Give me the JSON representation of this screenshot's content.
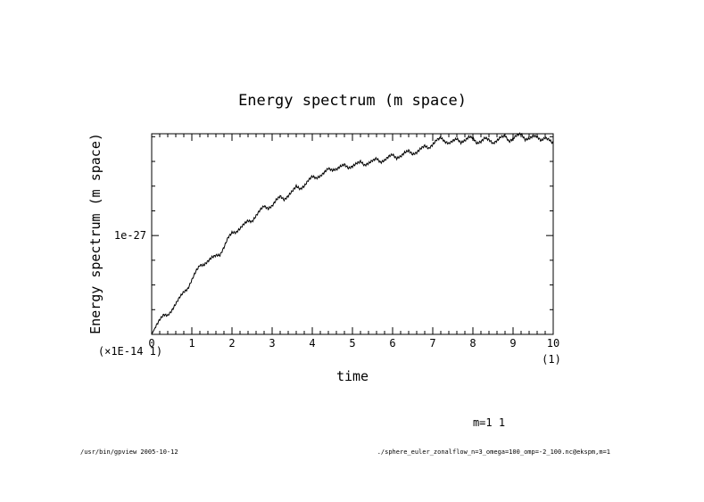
{
  "chart_data": {
    "type": "line",
    "title": "Energy spectrum (m space)",
    "xlabel": "time",
    "ylabel": "Energy spectrum (m space)",
    "x_ticks": [
      "0",
      "1",
      "2",
      "3",
      "4",
      "5",
      "6",
      "7",
      "8",
      "9",
      "10"
    ],
    "x_multiplier_label": "(1)",
    "y_multiplier_label": "(×1E-14 1)",
    "y_tick_label": "1e-27",
    "y_tick_value": 1.0,
    "xlim": [
      0,
      10
    ],
    "ylim": [
      0,
      2.03
    ],
    "legend_text": "m=1 1",
    "series": [
      {
        "name": "m=1 1",
        "x": [
          0,
          0.1,
          0.2,
          0.3,
          0.4,
          0.5,
          0.6,
          0.7,
          0.8,
          0.9,
          1.0,
          1.1,
          1.2,
          1.3,
          1.4,
          1.5,
          1.6,
          1.7,
          1.8,
          1.9,
          2.0,
          2.1,
          2.2,
          2.3,
          2.4,
          2.5,
          2.6,
          2.7,
          2.8,
          2.9,
          3.0,
          3.1,
          3.2,
          3.3,
          3.4,
          3.5,
          3.6,
          3.7,
          3.8,
          3.9,
          4.0,
          4.1,
          4.2,
          4.3,
          4.4,
          4.5,
          4.6,
          4.7,
          4.8,
          4.9,
          5.0,
          5.1,
          5.2,
          5.3,
          5.4,
          5.5,
          5.6,
          5.7,
          5.8,
          5.9,
          6.0,
          6.1,
          6.2,
          6.3,
          6.4,
          6.5,
          6.6,
          6.7,
          6.8,
          6.9,
          7.0,
          7.1,
          7.2,
          7.3,
          7.4,
          7.5,
          7.6,
          7.7,
          7.8,
          7.9,
          8.0,
          8.1,
          8.2,
          8.3,
          8.4,
          8.5,
          8.6,
          8.7,
          8.8,
          8.9,
          9.0,
          9.1,
          9.2,
          9.3,
          9.4,
          9.5,
          9.6,
          9.7,
          9.8,
          9.9,
          10.0
        ],
        "values": [
          0.0,
          0.08,
          0.15,
          0.2,
          0.19,
          0.24,
          0.31,
          0.38,
          0.43,
          0.46,
          0.55,
          0.64,
          0.7,
          0.7,
          0.74,
          0.78,
          0.8,
          0.8,
          0.88,
          0.98,
          1.03,
          1.03,
          1.07,
          1.12,
          1.15,
          1.14,
          1.2,
          1.26,
          1.3,
          1.27,
          1.3,
          1.36,
          1.4,
          1.36,
          1.4,
          1.45,
          1.5,
          1.47,
          1.5,
          1.56,
          1.6,
          1.58,
          1.6,
          1.64,
          1.68,
          1.66,
          1.67,
          1.7,
          1.72,
          1.68,
          1.7,
          1.73,
          1.75,
          1.71,
          1.73,
          1.76,
          1.78,
          1.74,
          1.76,
          1.8,
          1.82,
          1.78,
          1.8,
          1.84,
          1.86,
          1.82,
          1.84,
          1.88,
          1.91,
          1.88,
          1.92,
          1.97,
          1.99,
          1.95,
          1.93,
          1.96,
          1.98,
          1.94,
          1.96,
          2.0,
          1.99,
          1.93,
          1.95,
          1.99,
          1.97,
          1.93,
          1.96,
          2.0,
          2.01,
          1.95,
          1.98,
          2.02,
          2.03,
          1.97,
          1.98,
          2.01,
          2.0,
          1.96,
          1.99,
          1.97,
          1.93
        ]
      }
    ]
  },
  "footer": {
    "left": "/usr/bin/gpview 2005-10-12",
    "right": "./sphere_euler_zonalflow_n=3_omega=100_omp=-2_100.nc@ekspm,m=1"
  }
}
